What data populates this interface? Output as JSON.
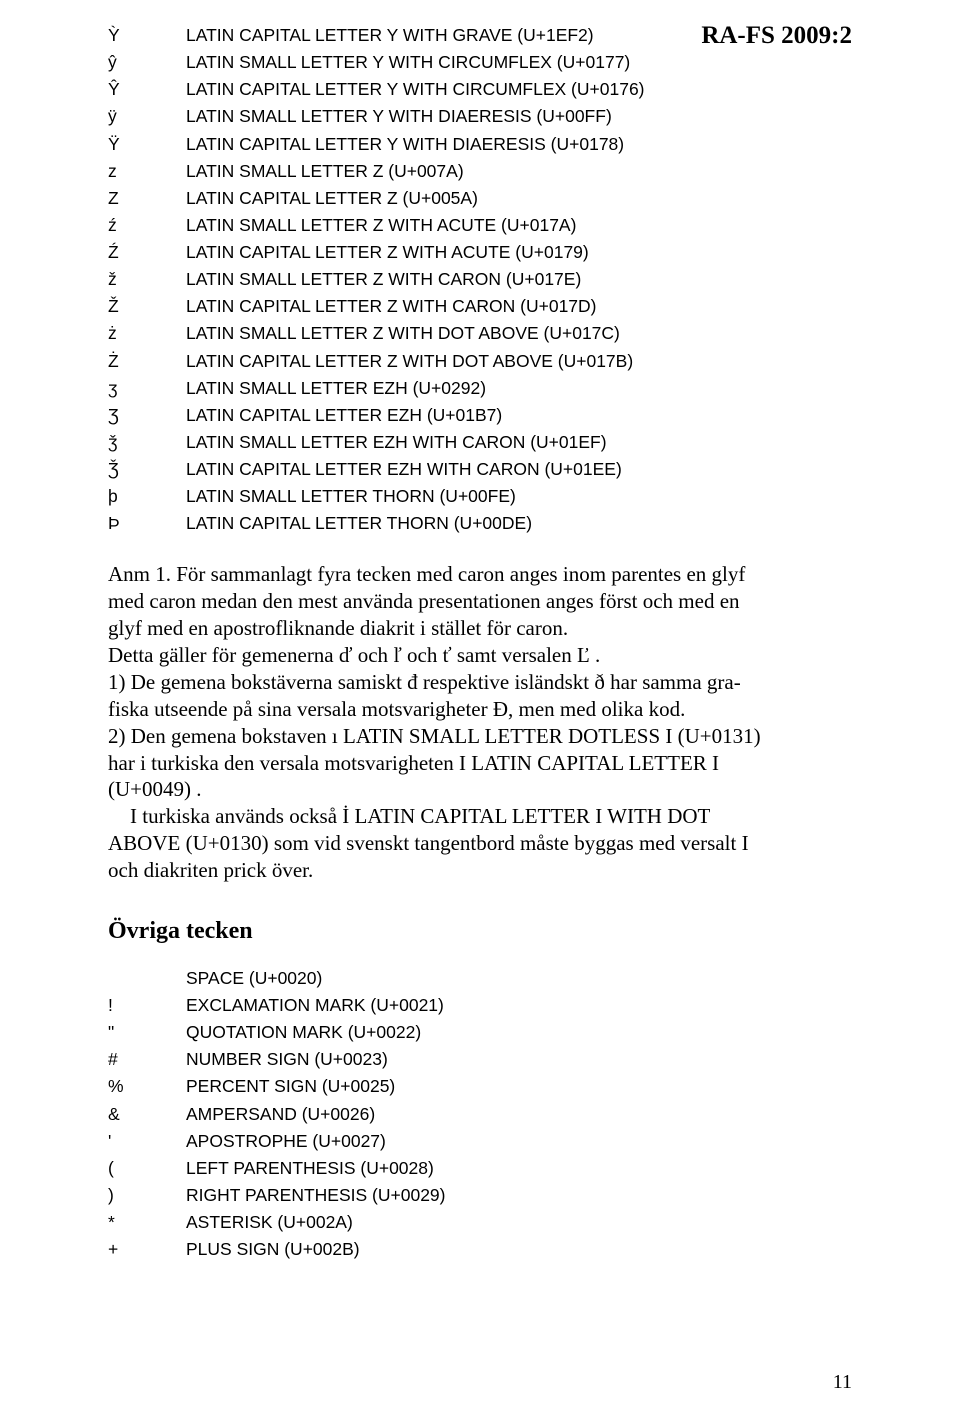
{
  "header": {
    "right": "RA-FS 2009:2"
  },
  "charTable": {
    "rows": [
      {
        "glyph": "Ỳ",
        "desc": "LATIN CAPITAL LETTER Y WITH GRAVE (U+1EF2)"
      },
      {
        "glyph": "ŷ",
        "desc": "LATIN SMALL LETTER Y WITH CIRCUMFLEX (U+0177)"
      },
      {
        "glyph": "Ŷ",
        "desc": "LATIN CAPITAL LETTER Y WITH CIRCUMFLEX (U+0176)"
      },
      {
        "glyph": "ÿ",
        "desc": "LATIN SMALL LETTER Y WITH DIAERESIS (U+00FF)"
      },
      {
        "glyph": "Ÿ",
        "desc": "LATIN CAPITAL LETTER Y WITH DIAERESIS (U+0178)"
      },
      {
        "glyph": "z",
        "desc": "LATIN SMALL LETTER Z (U+007A)"
      },
      {
        "glyph": "Z",
        "desc": "LATIN CAPITAL LETTER Z (U+005A)"
      },
      {
        "glyph": "ź",
        "desc": "LATIN SMALL LETTER Z WITH ACUTE (U+017A)"
      },
      {
        "glyph": "Ź",
        "desc": "LATIN CAPITAL LETTER Z WITH ACUTE (U+0179)"
      },
      {
        "glyph": "ž",
        "desc": "LATIN SMALL LETTER Z WITH CARON (U+017E)"
      },
      {
        "glyph": "Ž",
        "desc": "LATIN CAPITAL LETTER Z WITH CARON (U+017D)"
      },
      {
        "glyph": "ż",
        "desc": "LATIN SMALL LETTER Z WITH DOT ABOVE (U+017C)"
      },
      {
        "glyph": "Ż",
        "desc": "LATIN CAPITAL LETTER Z WITH DOT ABOVE (U+017B)"
      },
      {
        "glyph": "ʒ",
        "desc": "LATIN SMALL LETTER EZH (U+0292)"
      },
      {
        "glyph": "Ʒ",
        "desc": "LATIN CAPITAL LETTER EZH (U+01B7)"
      },
      {
        "glyph": "ǯ",
        "desc": "LATIN SMALL LETTER EZH WITH CARON (U+01EF)"
      },
      {
        "glyph": "Ǯ",
        "desc": "LATIN CAPITAL LETTER EZH WITH CARON (U+01EE)"
      },
      {
        "glyph": "þ",
        "desc": "LATIN SMALL LETTER THORN (U+00FE)"
      },
      {
        "glyph": "Þ",
        "desc": "LATIN CAPITAL LETTER THORN (U+00DE)"
      }
    ]
  },
  "body": {
    "anm1_l1": "Anm 1. För sammanlagt fyra tecken med caron anges inom parentes en glyf",
    "anm1_l2": "med caron medan den mest använda presentationen anges först och med en",
    "anm1_l3": "glyf med en apostrofliknande diakrit i stället för caron.",
    "anm1_l4": "Detta gäller för gemenerna ď och ľ och ť samt versalen Ľ .",
    "p2_l1": "1) De gemena bokstäverna samiskt đ respektive isländskt ð har samma gra-",
    "p2_l2": "fiska utseende på sina versala motsvarigheter Đ, men med olika kod.",
    "p2_l3": "2) Den gemena bokstaven ı LATIN SMALL LETTER DOTLESS I (U+0131)",
    "p2_l4": "har i turkiska den versala motsvarigheten I LATIN CAPITAL LETTER I",
    "p2_l5": "(U+0049) .",
    "p2_l6": "I turkiska används också İ LATIN CAPITAL LETTER I WITH DOT",
    "p2_l7": "ABOVE (U+0130) som vid svenskt tangentbord måste byggas med versalt I",
    "p2_l8": "och diakriten prick över."
  },
  "sectionTitle": "Övriga tecken",
  "otherTable": {
    "rows": [
      {
        "glyph": " ",
        "desc": "SPACE (U+0020)"
      },
      {
        "glyph": "!",
        "desc": "EXCLAMATION MARK (U+0021)"
      },
      {
        "glyph": "\"",
        "desc": "QUOTATION MARK (U+0022)"
      },
      {
        "glyph": "#",
        "desc": "NUMBER SIGN (U+0023)"
      },
      {
        "glyph": "%",
        "desc": "PERCENT SIGN (U+0025)"
      },
      {
        "glyph": "&",
        "desc": "AMPERSAND (U+0026)"
      },
      {
        "glyph": "'",
        "desc": "APOSTROPHE (U+0027)"
      },
      {
        "glyph": "(",
        "desc": "LEFT PARENTHESIS (U+0028)"
      },
      {
        "glyph": ")",
        "desc": "RIGHT PARENTHESIS (U+0029)"
      },
      {
        "glyph": "*",
        "desc": "ASTERISK (U+002A)"
      },
      {
        "glyph": "+",
        "desc": "PLUS SIGN (U+002B)"
      }
    ]
  },
  "pageNumber": "11"
}
